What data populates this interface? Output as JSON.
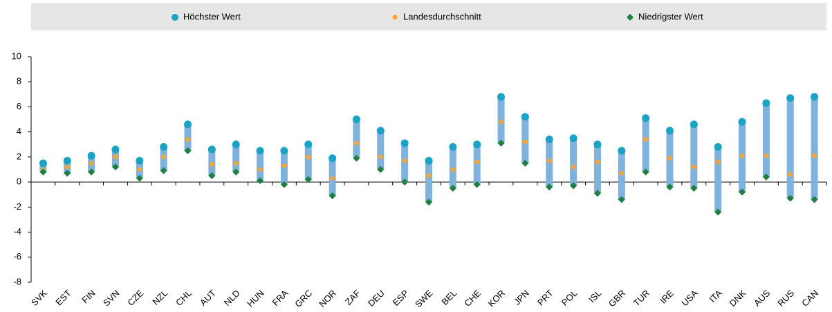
{
  "chart_data": {
    "type": "range",
    "categories": [
      "SVK",
      "EST",
      "FIN",
      "SVN",
      "CZE",
      "NZL",
      "CHL",
      "AUT",
      "NLD",
      "HUN",
      "FRA",
      "GRC",
      "NOR",
      "ZAF",
      "DEU",
      "ESP",
      "SWE",
      "BEL",
      "CHE",
      "KOR",
      "JPN",
      "PRT",
      "POL",
      "ISL",
      "GBR",
      "TUR",
      "IRE",
      "USA",
      "ITA",
      "DNK",
      "AUS",
      "RUS",
      "CAN"
    ],
    "series": [
      {
        "name": "Höchster Wert",
        "color": "#1ba3c6",
        "values": [
          1.5,
          1.7,
          2.1,
          2.6,
          1.7,
          2.8,
          4.6,
          2.6,
          3.0,
          2.5,
          2.5,
          3.0,
          1.9,
          5.0,
          4.1,
          3.1,
          1.7,
          2.8,
          3.0,
          6.8,
          5.2,
          3.4,
          3.5,
          3.0,
          2.5,
          5.1,
          4.1,
          4.6,
          2.8,
          4.8,
          6.3,
          6.7,
          6.8
        ]
      },
      {
        "name": "Landesdurchschnitt",
        "color": "#f5a53a",
        "values": [
          1.0,
          1.2,
          1.5,
          2.0,
          1.0,
          2.0,
          3.4,
          1.4,
          1.5,
          1.0,
          1.3,
          2.0,
          0.3,
          3.1,
          2.0,
          1.7,
          0.5,
          1.0,
          1.6,
          4.8,
          3.2,
          1.7,
          1.2,
          1.6,
          0.7,
          3.4,
          1.9,
          1.2,
          1.6,
          2.1,
          2.1,
          0.6,
          2.1
        ]
      },
      {
        "name": "Niedrigster Wert",
        "color": "#1e8040",
        "values": [
          0.8,
          0.7,
          0.8,
          1.2,
          0.3,
          0.9,
          2.5,
          0.5,
          0.8,
          0.1,
          -0.2,
          0.2,
          -1.1,
          1.9,
          1.0,
          0.0,
          -1.6,
          -0.5,
          -0.2,
          3.1,
          1.5,
          -0.4,
          -0.3,
          -0.9,
          -1.4,
          0.8,
          -0.4,
          -0.5,
          -2.4,
          -0.8,
          0.4,
          -1.3,
          -1.4
        ]
      }
    ],
    "bar_color": "#7fb2dd",
    "ylim": [
      -8,
      10
    ],
    "yticks": [
      -8,
      -6,
      -4,
      -2,
      0,
      2,
      4,
      6,
      8,
      10
    ]
  }
}
